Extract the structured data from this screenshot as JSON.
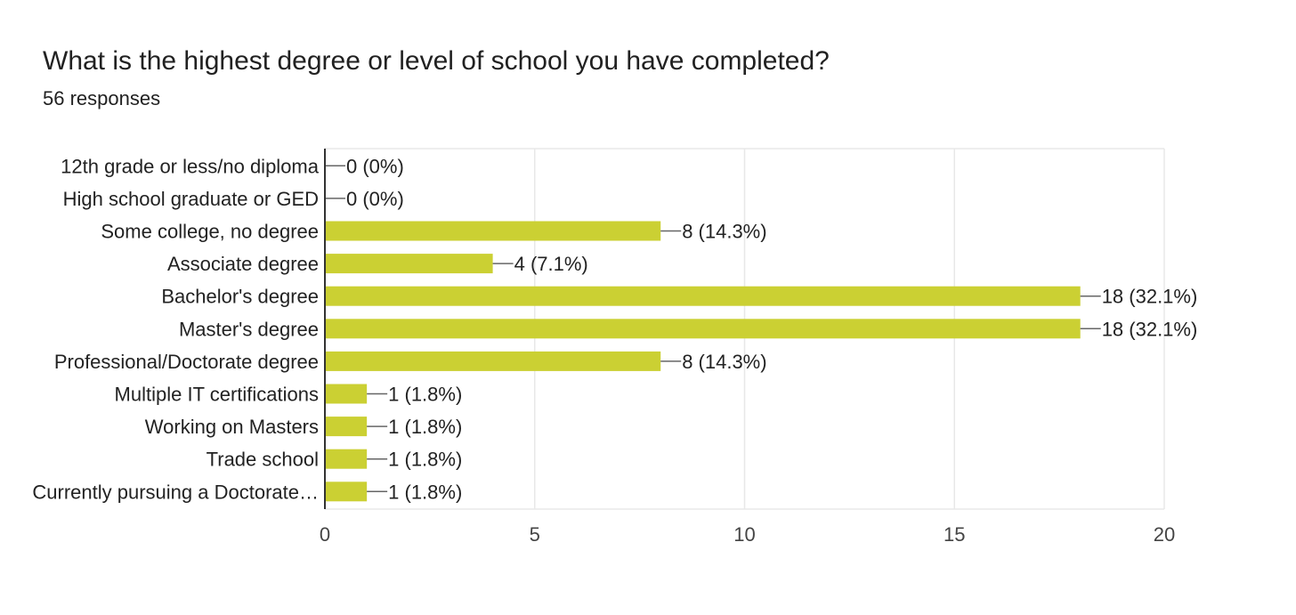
{
  "title": "What is the highest degree or level of school you have completed?",
  "subtitle": "56 responses",
  "colors": {
    "bar": "#cbd033",
    "grid": "#e8e8e8",
    "axis": "#333333",
    "leader": "#666666"
  },
  "chart_data": {
    "type": "bar",
    "orientation": "horizontal",
    "categories": [
      "12th grade or less/no diploma",
      "High school graduate or GED",
      "Some college, no degree",
      "Associate degree",
      "Bachelor's degree",
      "Master's degree",
      "Professional/Doctorate degree",
      "Multiple IT certifications",
      "Working on Masters",
      "Trade school",
      "Currently pursuing a Doctorate…"
    ],
    "values": [
      0,
      0,
      8,
      4,
      18,
      18,
      8,
      1,
      1,
      1,
      1
    ],
    "data_labels": [
      "0 (0%)",
      "0 (0%)",
      "8 (14.3%)",
      "4 (7.1%)",
      "18 (32.1%)",
      "18 (32.1%)",
      "8 (14.3%)",
      "1 (1.8%)",
      "1 (1.8%)",
      "1 (1.8%)",
      "1 (1.8%)"
    ],
    "xlim": [
      0,
      20
    ],
    "xticks": [
      "0",
      "5",
      "10",
      "15",
      "20"
    ],
    "grid": true
  }
}
